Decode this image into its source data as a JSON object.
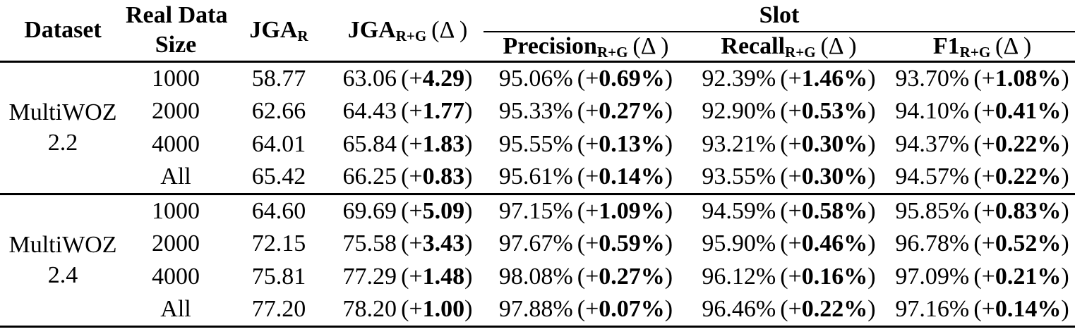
{
  "meta": {
    "background_color": "#ffffff",
    "text_color": "#000000",
    "rule_color": "#000000"
  },
  "fmt": {
    "open_plus": "(+",
    "close": ")"
  },
  "header": {
    "dataset": "Dataset",
    "size_line1": "Real Data",
    "size_line2": "Size",
    "jga": "JGA",
    "sub_r": "R",
    "sub_rg": "R+G",
    "delta": "(Δ )",
    "slot": "Slot",
    "precision": "Precision",
    "recall": "Recall",
    "f1": "F1"
  },
  "groups": [
    {
      "dataset_lines": [
        "MultiWOZ",
        "2.2"
      ],
      "rows": [
        {
          "size": "1000",
          "jga_r": "58.77",
          "jga_rg": {
            "v": "63.06",
            "d": "4.29"
          },
          "precision": {
            "v": "95.06%",
            "d": "0.69%"
          },
          "recall": {
            "v": "92.39%",
            "d": "1.46%"
          },
          "f1": {
            "v": "93.70%",
            "d": "1.08%"
          }
        },
        {
          "size": "2000",
          "jga_r": "62.66",
          "jga_rg": {
            "v": "64.43",
            "d": "1.77"
          },
          "precision": {
            "v": "95.33%",
            "d": "0.27%"
          },
          "recall": {
            "v": "92.90%",
            "d": "0.53%"
          },
          "f1": {
            "v": "94.10%",
            "d": "0.41%"
          }
        },
        {
          "size": "4000",
          "jga_r": "64.01",
          "jga_rg": {
            "v": "65.84",
            "d": "1.83"
          },
          "precision": {
            "v": "95.55%",
            "d": "0.13%"
          },
          "recall": {
            "v": "93.21%",
            "d": "0.30%"
          },
          "f1": {
            "v": "94.37%",
            "d": "0.22%"
          }
        },
        {
          "size": "All",
          "jga_r": "65.42",
          "jga_rg": {
            "v": "66.25",
            "d": "0.83"
          },
          "precision": {
            "v": "95.61%",
            "d": "0.14%"
          },
          "recall": {
            "v": "93.55%",
            "d": "0.30%"
          },
          "f1": {
            "v": "94.57%",
            "d": "0.22%"
          }
        }
      ]
    },
    {
      "dataset_lines": [
        "MultiWOZ",
        "2.4"
      ],
      "rows": [
        {
          "size": "1000",
          "jga_r": "64.60",
          "jga_rg": {
            "v": "69.69",
            "d": "5.09"
          },
          "precision": {
            "v": "97.15%",
            "d": "1.09%"
          },
          "recall": {
            "v": "94.59%",
            "d": "0.58%"
          },
          "f1": {
            "v": "95.85%",
            "d": "0.83%"
          }
        },
        {
          "size": "2000",
          "jga_r": "72.15",
          "jga_rg": {
            "v": "75.58",
            "d": "3.43"
          },
          "precision": {
            "v": "97.67%",
            "d": "0.59%"
          },
          "recall": {
            "v": "95.90%",
            "d": "0.46%"
          },
          "f1": {
            "v": "96.78%",
            "d": "0.52%"
          }
        },
        {
          "size": "4000",
          "jga_r": "75.81",
          "jga_rg": {
            "v": "77.29",
            "d": "1.48"
          },
          "precision": {
            "v": "98.08%",
            "d": "0.27%"
          },
          "recall": {
            "v": "96.12%",
            "d": "0.16%"
          },
          "f1": {
            "v": "97.09%",
            "d": "0.21%"
          }
        },
        {
          "size": "All",
          "jga_r": "77.20",
          "jga_rg": {
            "v": "78.20",
            "d": "1.00"
          },
          "precision": {
            "v": "97.88%",
            "d": "0.07%"
          },
          "recall": {
            "v": "96.46%",
            "d": "0.22%"
          },
          "f1": {
            "v": "97.16%",
            "d": "0.14%"
          }
        }
      ]
    }
  ]
}
